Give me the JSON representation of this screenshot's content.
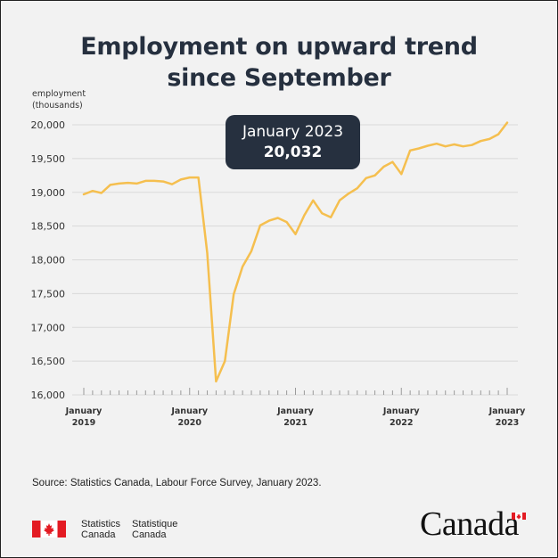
{
  "title_lines": [
    "Employment on upward trend",
    "since September"
  ],
  "callout": {
    "label": "January 2023",
    "value": "20,032"
  },
  "source": "Source: Statistics Canada, Labour Force Survey, January 2023.",
  "footer": {
    "wordmark_en": [
      "Statistics",
      "Canada"
    ],
    "wordmark_fr": [
      "Statistique",
      "Canada"
    ],
    "canada_wordmark": "Canada"
  },
  "colors": {
    "line": "#f5bf4f",
    "text": "#26303f",
    "callout_bg": "#26303f",
    "flag_red": "#e31b23"
  },
  "chart_data": {
    "type": "line",
    "ylabel": [
      "employment",
      "(thousands)"
    ],
    "ylim": [
      16000,
      20000
    ],
    "yticks": [
      16000,
      16500,
      17000,
      17500,
      18000,
      18500,
      19000,
      19500,
      20000
    ],
    "ytick_labels": [
      "16,000",
      "16,500",
      "17,000",
      "17,500",
      "18,000",
      "18,500",
      "19,000",
      "19,500",
      "20,000"
    ],
    "x_tick_labels": [
      [
        "January",
        "2019"
      ],
      [
        "January",
        "2020"
      ],
      [
        "January",
        "2021"
      ],
      [
        "January",
        "2022"
      ],
      [
        "January",
        "2023"
      ]
    ],
    "grid": "horizontal",
    "x": [
      "2019-01",
      "2019-02",
      "2019-03",
      "2019-04",
      "2019-05",
      "2019-06",
      "2019-07",
      "2019-08",
      "2019-09",
      "2019-10",
      "2019-11",
      "2019-12",
      "2020-01",
      "2020-02",
      "2020-03",
      "2020-04",
      "2020-05",
      "2020-06",
      "2020-07",
      "2020-08",
      "2020-09",
      "2020-10",
      "2020-11",
      "2020-12",
      "2021-01",
      "2021-02",
      "2021-03",
      "2021-04",
      "2021-05",
      "2021-06",
      "2021-07",
      "2021-08",
      "2021-09",
      "2021-10",
      "2021-11",
      "2021-12",
      "2022-01",
      "2022-02",
      "2022-03",
      "2022-04",
      "2022-05",
      "2022-06",
      "2022-07",
      "2022-08",
      "2022-09",
      "2022-10",
      "2022-11",
      "2022-12",
      "2023-01"
    ],
    "series": [
      {
        "values": [
          18970,
          19020,
          18990,
          19110,
          19130,
          19140,
          19130,
          19170,
          19170,
          19160,
          19120,
          19190,
          19220,
          19220,
          18100,
          16200,
          16500,
          17490,
          17900,
          18130,
          18510,
          18580,
          18620,
          18560,
          18380,
          18660,
          18880,
          18690,
          18630,
          18880,
          18980,
          19060,
          19210,
          19250,
          19380,
          19450,
          19270,
          19620,
          19650,
          19690,
          19720,
          19680,
          19710,
          19680,
          19700,
          19760,
          19790,
          19860,
          20032
        ]
      }
    ]
  }
}
